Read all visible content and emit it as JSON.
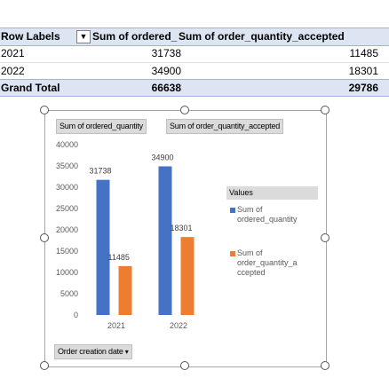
{
  "pivot": {
    "headers": {
      "row_labels": "Row Labels",
      "filter_icon": "filter-dropdown-icon",
      "col1": "Sum of ordered_",
      "col2": "Sum of order_quantity_accepted"
    },
    "rows": [
      {
        "label": "2021",
        "v1": "31738",
        "v2": "11485"
      },
      {
        "label": "2022",
        "v1": "34900",
        "v2": "18301"
      }
    ],
    "total": {
      "label": "Grand Total",
      "v1": "66638",
      "v2": "29786"
    }
  },
  "chart_data": {
    "type": "bar",
    "categories": [
      "2021",
      "2022"
    ],
    "series": [
      {
        "name": "Sum of ordered_quantity",
        "values": [
          31738,
          34900
        ],
        "color": "#4472c4"
      },
      {
        "name": "Sum of order_quantity_accepted",
        "values": [
          11485,
          18301
        ],
        "color": "#ed7d31"
      }
    ],
    "ylim": [
      0,
      40000
    ],
    "yticks": [
      0,
      5000,
      10000,
      15000,
      20000,
      25000,
      30000,
      35000,
      40000
    ],
    "data_labels": true,
    "legend": "right",
    "legend_title": "Values",
    "legend_items": [
      {
        "lines": [
          "Sum of",
          "ordered_quantity"
        ]
      },
      {
        "lines": [
          "Sum of",
          "order_quantity_a",
          "ccepted"
        ]
      }
    ],
    "field_buttons": {
      "value1": "Sum of ordered_quantity",
      "value2": "Sum of order_quantity_accepted",
      "axis": "Order creation date"
    },
    "grid": false
  }
}
